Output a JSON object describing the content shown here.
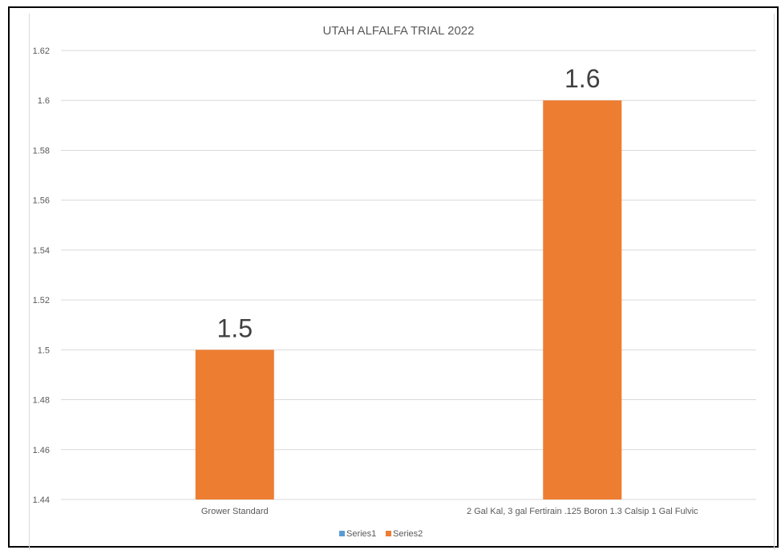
{
  "chart_data": {
    "type": "bar",
    "title": "UTAH ALFALFA TRIAL 2022",
    "xlabel": "",
    "ylabel": "",
    "categories": [
      "Grower Standard",
      "2 Gal Kal, 3 gal Fertirain .125 Boron 1.3 Calsip 1 Gal Fulvic"
    ],
    "series": [
      {
        "name": "Series1",
        "values": [
          null,
          null
        ],
        "color": "#5b9bd5"
      },
      {
        "name": "Series2",
        "values": [
          1.5,
          1.6
        ],
        "color": "#ed7d31"
      }
    ],
    "data_labels": [
      "1.5",
      "1.6"
    ],
    "ylim": [
      1.44,
      1.62
    ],
    "yticks": [
      "1.44",
      "1.46",
      "1.48",
      "1.5",
      "1.52",
      "1.54",
      "1.56",
      "1.58",
      "1.6",
      "1.62"
    ],
    "grid": true,
    "legend": "bottom"
  }
}
